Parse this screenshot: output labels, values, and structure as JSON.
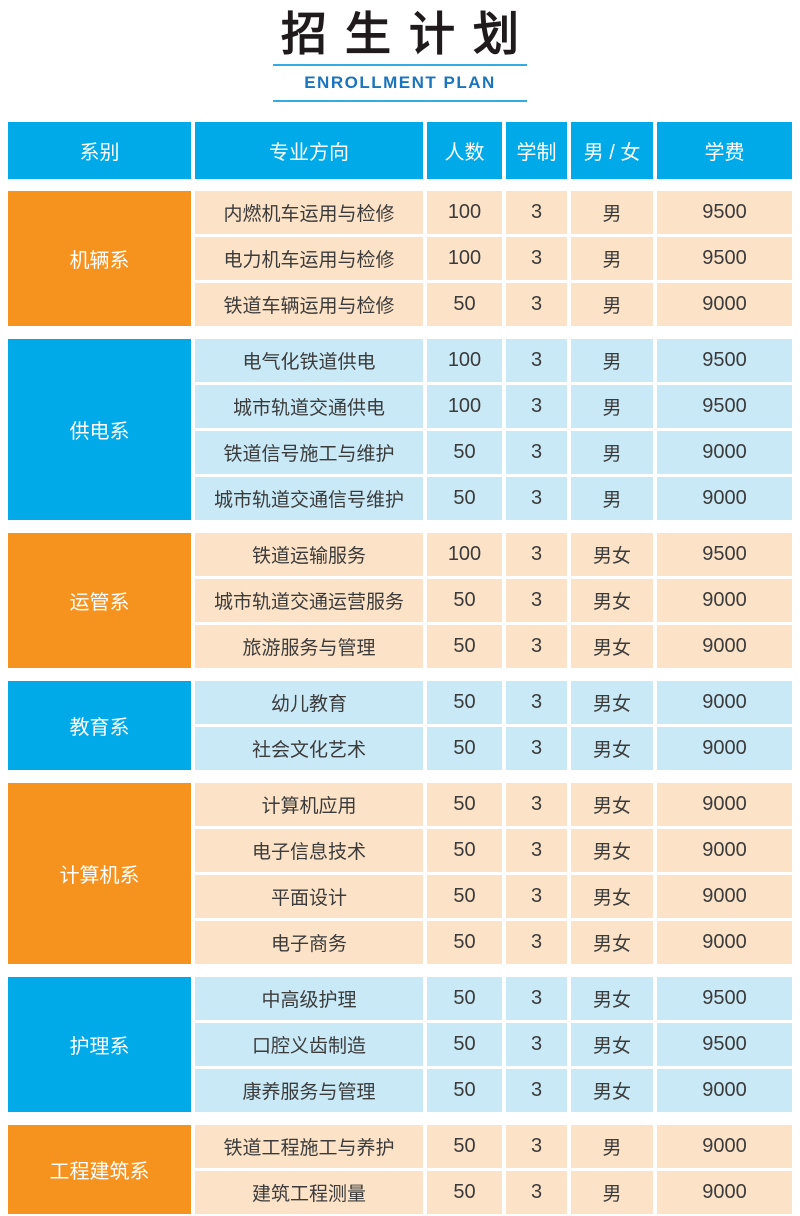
{
  "title": {
    "main": "招生计划",
    "subtitle": "ENROLLMENT PLAN"
  },
  "colors": {
    "header_blue": "#00aae9",
    "dept_orange": "#f6921e",
    "row_peach": "#fce3c7",
    "row_lightblue": "#c9e9f6",
    "subtitle_blue": "#1b75bc",
    "line_blue": "#33ace3"
  },
  "table": {
    "headers": [
      "系别",
      "专业方向",
      "人数",
      "学制",
      "男 / 女",
      "学费"
    ],
    "groups": [
      {
        "department": "机辆系",
        "theme": "orange",
        "rows": [
          [
            "内燃机车运用与检修",
            "100",
            "3",
            "男",
            "9500"
          ],
          [
            "电力机车运用与检修",
            "100",
            "3",
            "男",
            "9500"
          ],
          [
            "铁道车辆运用与检修",
            "50",
            "3",
            "男",
            "9000"
          ]
        ]
      },
      {
        "department": "供电系",
        "theme": "blue",
        "rows": [
          [
            "电气化铁道供电",
            "100",
            "3",
            "男",
            "9500"
          ],
          [
            "城市轨道交通供电",
            "100",
            "3",
            "男",
            "9500"
          ],
          [
            "铁道信号施工与维护",
            "50",
            "3",
            "男",
            "9000"
          ],
          [
            "城市轨道交通信号维护",
            "50",
            "3",
            "男",
            "9000"
          ]
        ]
      },
      {
        "department": "运管系",
        "theme": "orange",
        "rows": [
          [
            "铁道运输服务",
            "100",
            "3",
            "男女",
            "9500"
          ],
          [
            "城市轨道交通运营服务",
            "50",
            "3",
            "男女",
            "9000"
          ],
          [
            "旅游服务与管理",
            "50",
            "3",
            "男女",
            "9000"
          ]
        ]
      },
      {
        "department": "教育系",
        "theme": "blue",
        "rows": [
          [
            "幼儿教育",
            "50",
            "3",
            "男女",
            "9000"
          ],
          [
            "社会文化艺术",
            "50",
            "3",
            "男女",
            "9000"
          ]
        ]
      },
      {
        "department": "计算机系",
        "theme": "orange",
        "rows": [
          [
            "计算机应用",
            "50",
            "3",
            "男女",
            "9000"
          ],
          [
            "电子信息技术",
            "50",
            "3",
            "男女",
            "9000"
          ],
          [
            "平面设计",
            "50",
            "3",
            "男女",
            "9000"
          ],
          [
            "电子商务",
            "50",
            "3",
            "男女",
            "9000"
          ]
        ]
      },
      {
        "department": "护理系",
        "theme": "blue",
        "rows": [
          [
            "中高级护理",
            "50",
            "3",
            "男女",
            "9500"
          ],
          [
            "口腔义齿制造",
            "50",
            "3",
            "男女",
            "9500"
          ],
          [
            "康养服务与管理",
            "50",
            "3",
            "男女",
            "9000"
          ]
        ]
      },
      {
        "department": "工程建筑系",
        "theme": "orange",
        "rows": [
          [
            "铁道工程施工与养护",
            "50",
            "3",
            "男",
            "9000"
          ],
          [
            "建筑工程测量",
            "50",
            "3",
            "男",
            "9000"
          ]
        ]
      }
    ]
  }
}
